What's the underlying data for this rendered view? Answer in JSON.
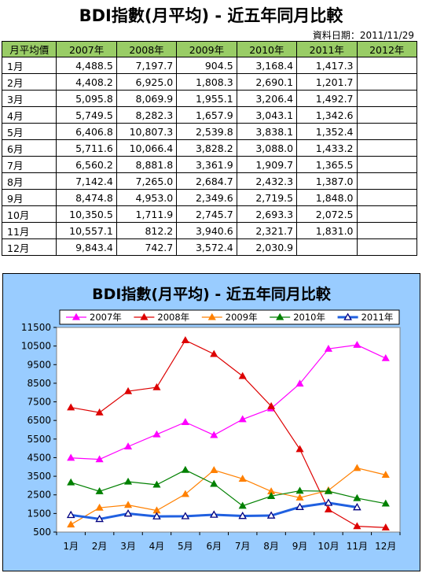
{
  "table": {
    "title": "BDI指數(月平均) - 近五年同月比較",
    "date_label": "資料日期：2011/11/29",
    "headers": [
      "月平均價",
      "2007年",
      "2008年",
      "2009年",
      "2010年",
      "2011年",
      "2012年"
    ],
    "rows": [
      [
        "1月",
        "4,488.5",
        "7,197.7",
        "904.5",
        "3,168.4",
        "1,417.3",
        ""
      ],
      [
        "2月",
        "4,408.2",
        "6,925.0",
        "1,808.3",
        "2,690.1",
        "1,201.7",
        ""
      ],
      [
        "3月",
        "5,095.8",
        "8,069.9",
        "1,955.1",
        "3,206.4",
        "1,492.7",
        ""
      ],
      [
        "4月",
        "5,749.5",
        "8,282.3",
        "1,657.9",
        "3,043.1",
        "1,342.6",
        ""
      ],
      [
        "5月",
        "6,406.8",
        "10,807.3",
        "2,539.8",
        "3,838.1",
        "1,352.4",
        ""
      ],
      [
        "6月",
        "5,711.6",
        "10,066.4",
        "3,828.2",
        "3,088.0",
        "1,433.2",
        ""
      ],
      [
        "7月",
        "6,560.2",
        "8,881.8",
        "3,361.9",
        "1,909.7",
        "1,365.5",
        ""
      ],
      [
        "8月",
        "7,142.4",
        "7,265.0",
        "2,684.7",
        "2,432.3",
        "1,387.0",
        ""
      ],
      [
        "9月",
        "8,474.8",
        "4,953.0",
        "2,349.6",
        "2,719.5",
        "1,848.0",
        ""
      ],
      [
        "10月",
        "10,350.5",
        "1,711.9",
        "2,745.7",
        "2,693.3",
        "2,072.5",
        ""
      ],
      [
        "11月",
        "10,557.1",
        "812.2",
        "3,940.6",
        "2,321.7",
        "1,831.0",
        ""
      ],
      [
        "12月",
        "9,843.4",
        "742.7",
        "3,572.4",
        "2,030.9",
        "",
        ""
      ]
    ]
  },
  "chart_data": {
    "type": "line",
    "title": "BDI指數(月平均) - 近五年同月比較",
    "categories": [
      "1月",
      "2月",
      "3月",
      "4月",
      "5月",
      "6月",
      "7月",
      "8月",
      "9月",
      "10月",
      "11月",
      "12月"
    ],
    "ylim": [
      500,
      11500
    ],
    "yticks": [
      500,
      1500,
      2500,
      3500,
      4500,
      5500,
      6500,
      7500,
      8500,
      9500,
      10500,
      11500
    ],
    "grid": false,
    "legend_position": "top",
    "series": [
      {
        "name": "2007年",
        "color": "#ff00ff",
        "marker": "triangle",
        "values": [
          4488.5,
          4408.2,
          5095.8,
          5749.5,
          6406.8,
          5711.6,
          6560.2,
          7142.4,
          8474.8,
          10350.5,
          10557.1,
          9843.4
        ]
      },
      {
        "name": "2008年",
        "color": "#dd0000",
        "marker": "triangle",
        "values": [
          7197.7,
          6925.0,
          8069.9,
          8282.3,
          10807.3,
          10066.4,
          8881.8,
          7265.0,
          4953.0,
          1711.9,
          812.2,
          742.7
        ]
      },
      {
        "name": "2009年",
        "color": "#ff8000",
        "marker": "triangle",
        "values": [
          904.5,
          1808.3,
          1955.1,
          1657.9,
          2539.8,
          3828.2,
          3361.9,
          2684.7,
          2349.6,
          2745.7,
          3940.6,
          3572.4
        ]
      },
      {
        "name": "2010年",
        "color": "#008000",
        "marker": "triangle",
        "values": [
          3168.4,
          2690.1,
          3206.4,
          3043.1,
          3838.1,
          3088.0,
          1909.7,
          2432.3,
          2719.5,
          2693.3,
          2321.7,
          2030.9
        ]
      },
      {
        "name": "2011年",
        "color": "#2060e0",
        "marker": "open-triangle",
        "values": [
          1417.3,
          1201.7,
          1492.7,
          1342.6,
          1352.4,
          1433.2,
          1365.5,
          1387.0,
          1848.0,
          2072.5,
          1831.0,
          null
        ]
      }
    ]
  }
}
